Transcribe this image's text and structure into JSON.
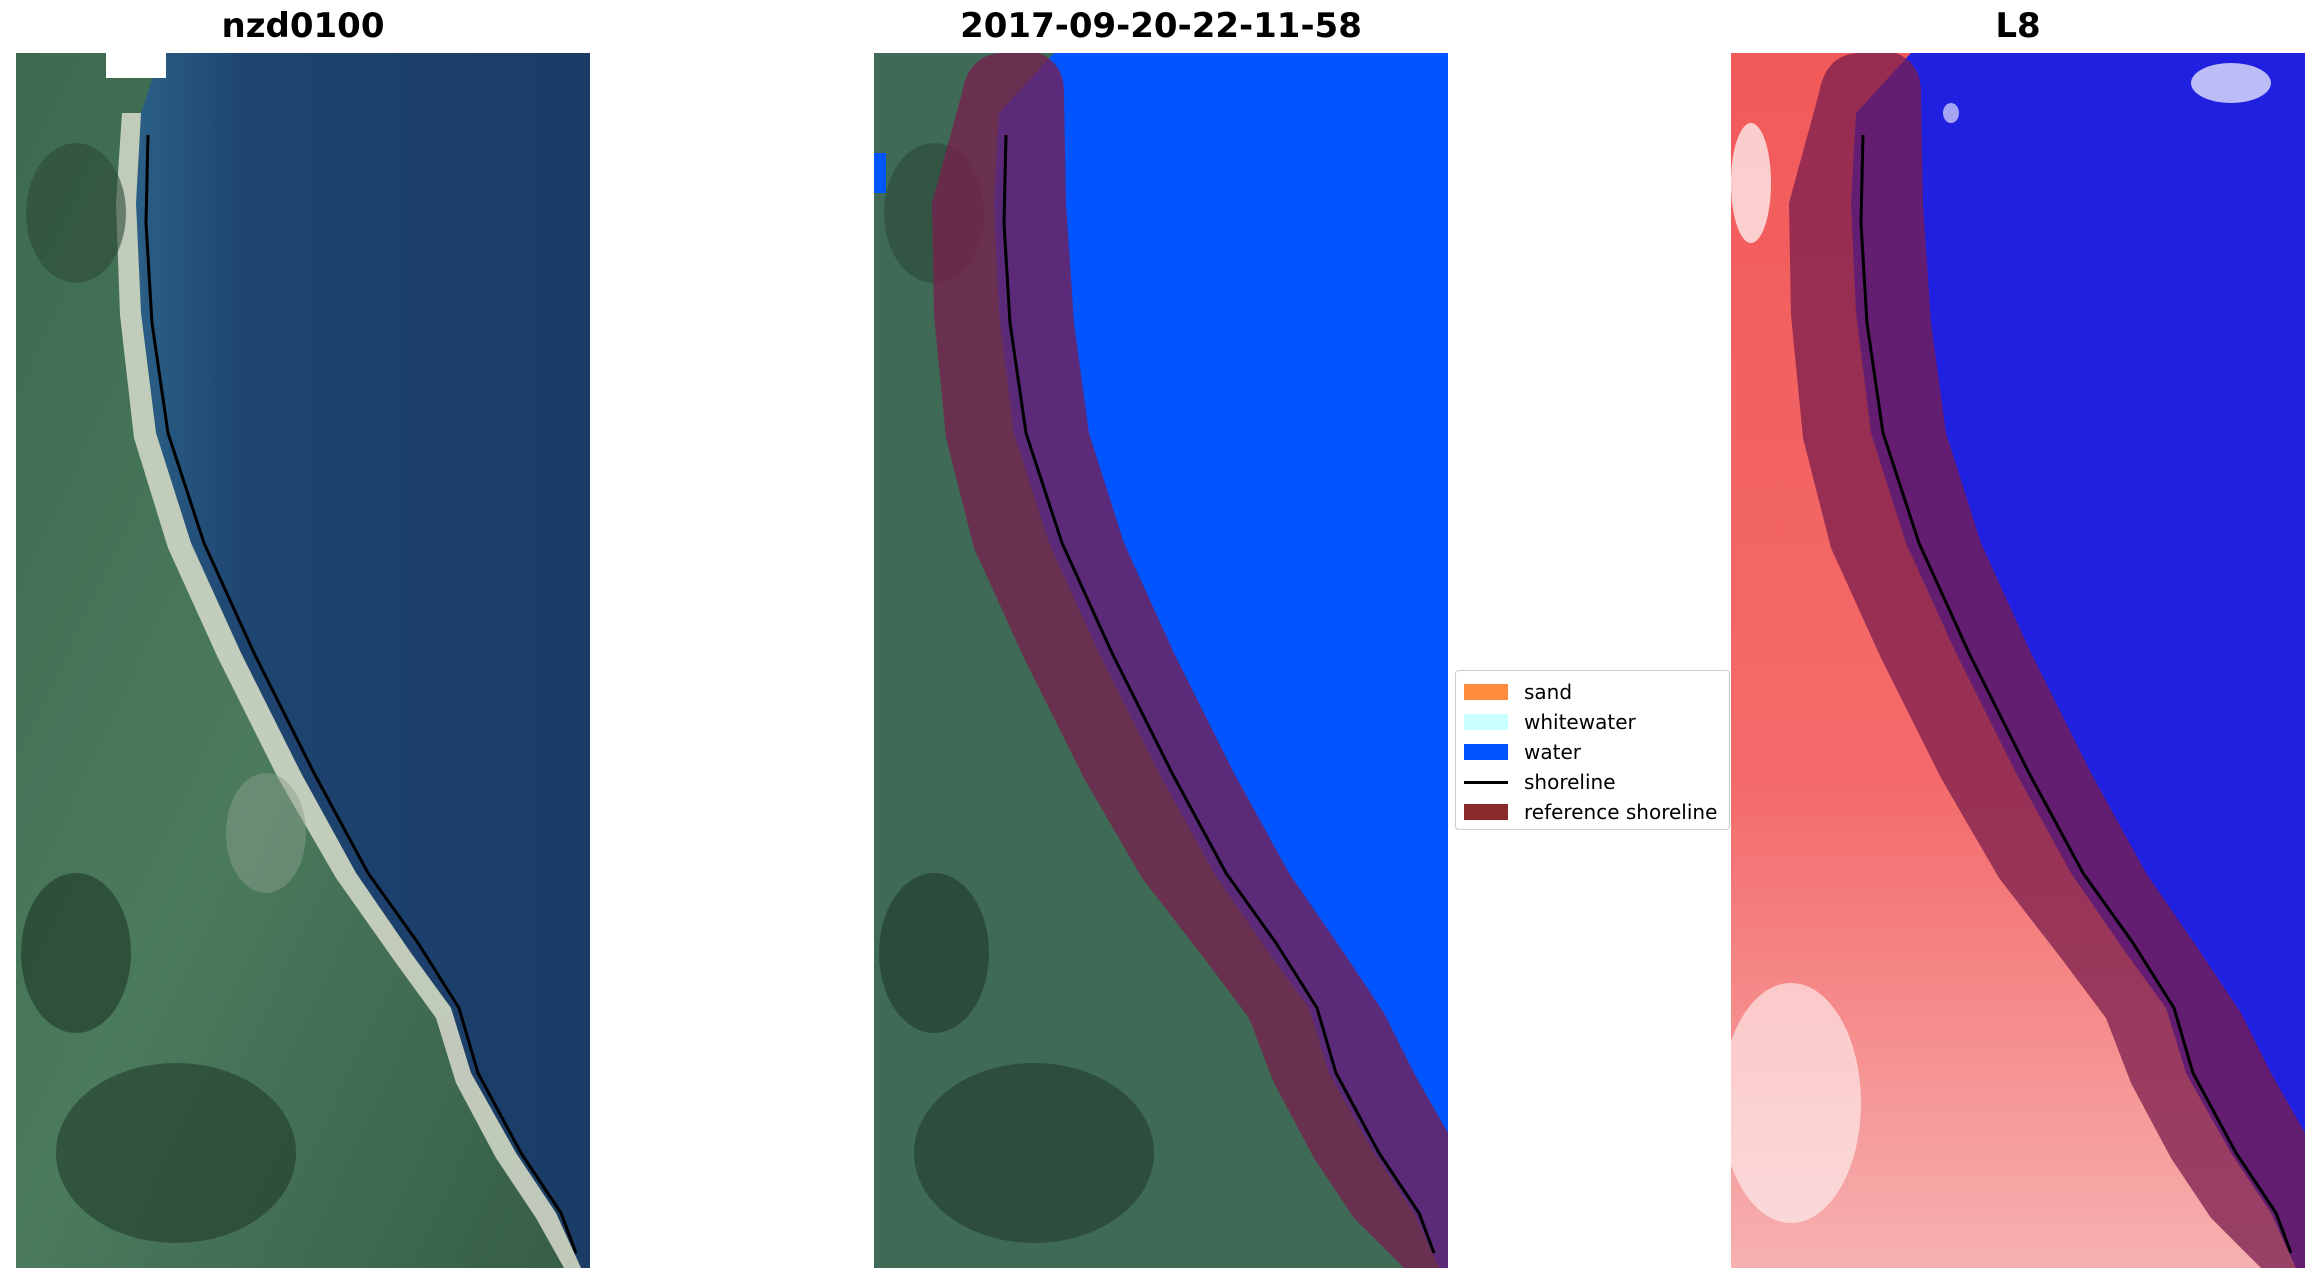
{
  "panels": [
    {
      "title": "nzd0100"
    },
    {
      "title": "2017-09-20-22-11-58"
    },
    {
      "title": "L8"
    }
  ],
  "legend": {
    "items": [
      {
        "label": "sand",
        "kind": "swatch",
        "color": "#ff8c3a"
      },
      {
        "label": "whitewater",
        "kind": "swatch",
        "color": "#c8ffff"
      },
      {
        "label": "water",
        "kind": "swatch",
        "color": "#0055ff"
      },
      {
        "label": "shoreline",
        "kind": "line",
        "color": "#000000"
      },
      {
        "label": "reference shoreline",
        "kind": "swatch",
        "color": "#8b2a2a"
      }
    ]
  },
  "colors": {
    "land": "#3f6a55",
    "ocean": "#1f3f68",
    "water_class": "#0055ff",
    "reference_buffer": "#7a1e4e",
    "mndwi_land": "#f46262",
    "mndwi_water": "#2020e0"
  }
}
